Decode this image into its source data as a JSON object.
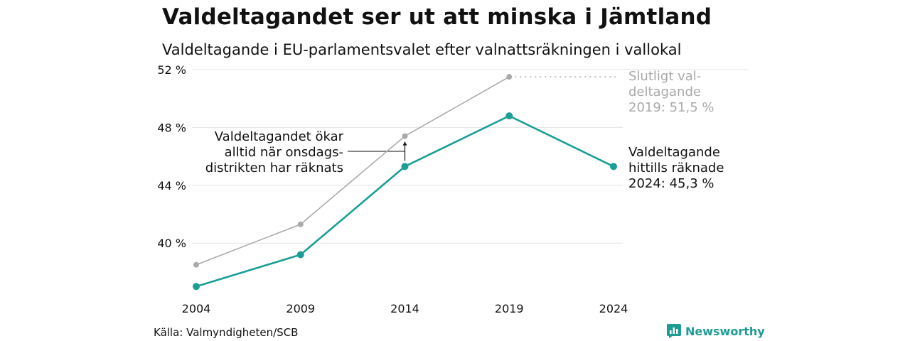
{
  "header": {
    "title": "Valdeltagandet ser ut att minska i Jämtland",
    "subtitle": "Valdeltagande i EU-parlamentsvalet efter valnattsräkningen i vallokal"
  },
  "annotations": {
    "final_2019": [
      "Slutligt val-",
      "deltagande",
      "2019: 51,5 %"
    ],
    "current_2024": [
      "Valdeltagande",
      "hittills räknade",
      "2024: 45,3 %"
    ],
    "wednesday": [
      "Valdeltagandet ökar",
      "alltid när onsdags-",
      "distrikten har räknats"
    ]
  },
  "footer": {
    "source": "Källa: Valmyndigheten/SCB",
    "brand": "Newsworthy"
  },
  "colors": {
    "election_night": "#1a9e96",
    "final": "#aaaaaa",
    "grid": "#e3e3e3",
    "brand": "#1d9c94"
  },
  "chart_data": {
    "type": "line",
    "x": [
      2004,
      2009,
      2014,
      2019,
      2024
    ],
    "ylim": [
      36.5,
      52
    ],
    "yticks": [
      40,
      44,
      48,
      52
    ],
    "ytick_labels": [
      "40 %",
      "44 %",
      "48 %",
      "52 %"
    ],
    "xtick_labels": [
      "2004",
      "2009",
      "2014",
      "2019",
      "2024"
    ],
    "grid": true,
    "series": [
      {
        "key": "final",
        "values": [
          38.5,
          41.3,
          47.4,
          51.5,
          null
        ]
      },
      {
        "key": "election_night",
        "values": [
          37.0,
          39.2,
          45.3,
          48.8,
          45.3
        ]
      }
    ]
  }
}
